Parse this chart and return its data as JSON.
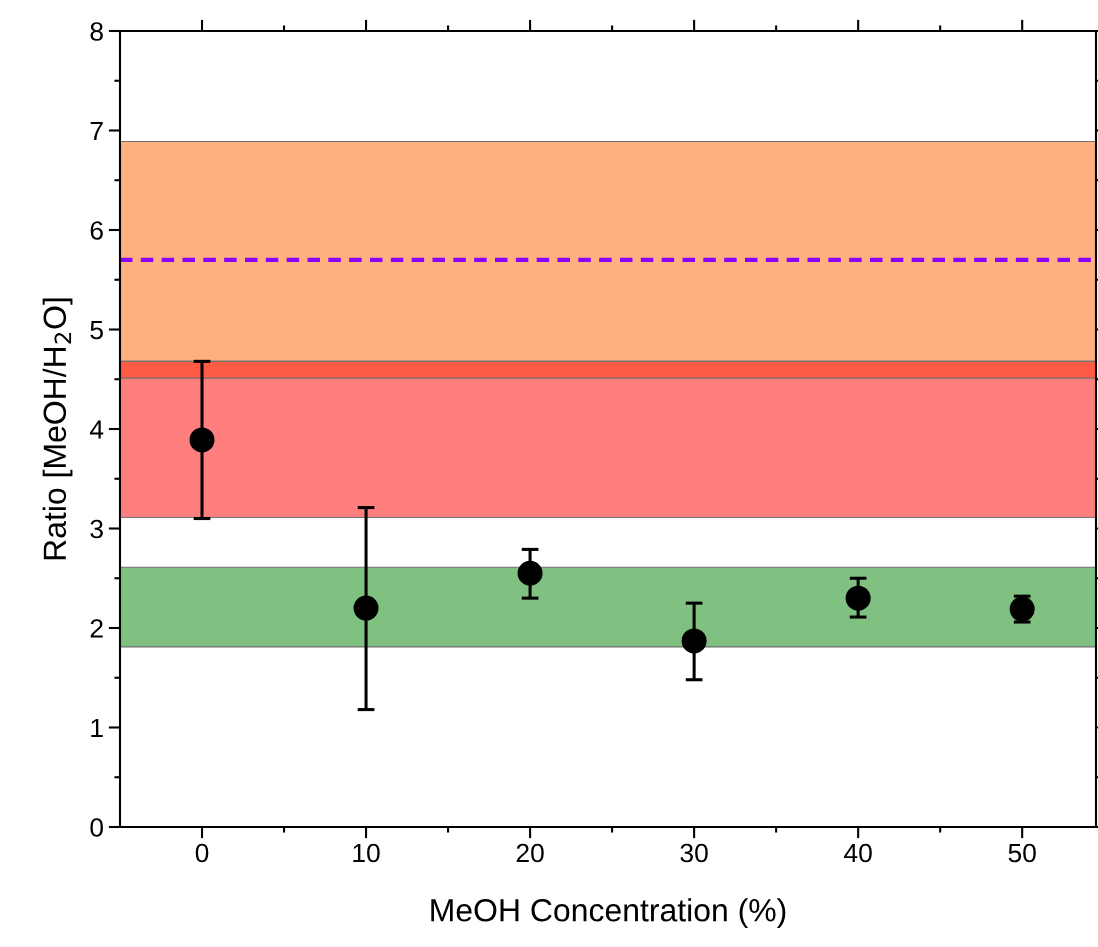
{
  "chart_data": {
    "type": "scatter",
    "xlabel": "MeOH Concentration (%)",
    "ylabel": "Ratio [MeOH/H$_{2}$O]",
    "x": [
      0,
      10,
      20,
      30,
      40,
      50
    ],
    "series": [
      {
        "color": "#000000",
        "values": [
          3.89,
          2.2,
          2.55,
          1.87,
          2.3,
          2.19
        ],
        "errors": [
          [
            3.1,
            4.68
          ],
          [
            1.18,
            3.21
          ],
          [
            2.3,
            2.79
          ],
          [
            1.48,
            2.25
          ],
          [
            2.11,
            2.5
          ],
          [
            2.06,
            2.32
          ]
        ]
      }
    ],
    "marker": "circle",
    "xlim": [
      -5,
      54.5
    ],
    "ylim": [
      0,
      8
    ],
    "xticks": [
      0,
      {
        "value": 5,
        "label": null
      },
      10,
      {
        "value": 15,
        "label": null
      },
      20,
      {
        "value": 25,
        "label": null
      },
      30,
      {
        "value": 35,
        "label": null
      },
      40,
      {
        "value": 45,
        "label": null
      },
      50
    ],
    "yticks": [
      0,
      {
        "value": 0.5,
        "label": null
      },
      1,
      {
        "value": 1.5,
        "label": null
      },
      2,
      {
        "value": 2.5,
        "label": null
      },
      3,
      {
        "value": 3.5,
        "label": null
      },
      4,
      {
        "value": 4.5,
        "label": null
      },
      5,
      {
        "value": 5.5,
        "label": null
      },
      6,
      {
        "value": 6.5,
        "label": null
      },
      7,
      {
        "value": 7.5,
        "label": null
      },
      8
    ],
    "bands": [
      {
        "axis": "y",
        "from": 4.68,
        "to": 6.89,
        "color": "#ffb07f"
      },
      {
        "axis": "y",
        "from": 4.51,
        "to": 4.68,
        "color": "#ff5a44"
      },
      {
        "axis": "y",
        "from": 3.11,
        "to": 4.51,
        "color": "#ff7f7f"
      },
      {
        "axis": "y",
        "from": 1.81,
        "to": 2.61,
        "color": "#80c080"
      }
    ],
    "ref_lines": [
      {
        "axis": "y",
        "value": 5.7,
        "color": "#8b00ff",
        "line_style": "dashed"
      }
    ],
    "grid": false,
    "legend": false
  }
}
